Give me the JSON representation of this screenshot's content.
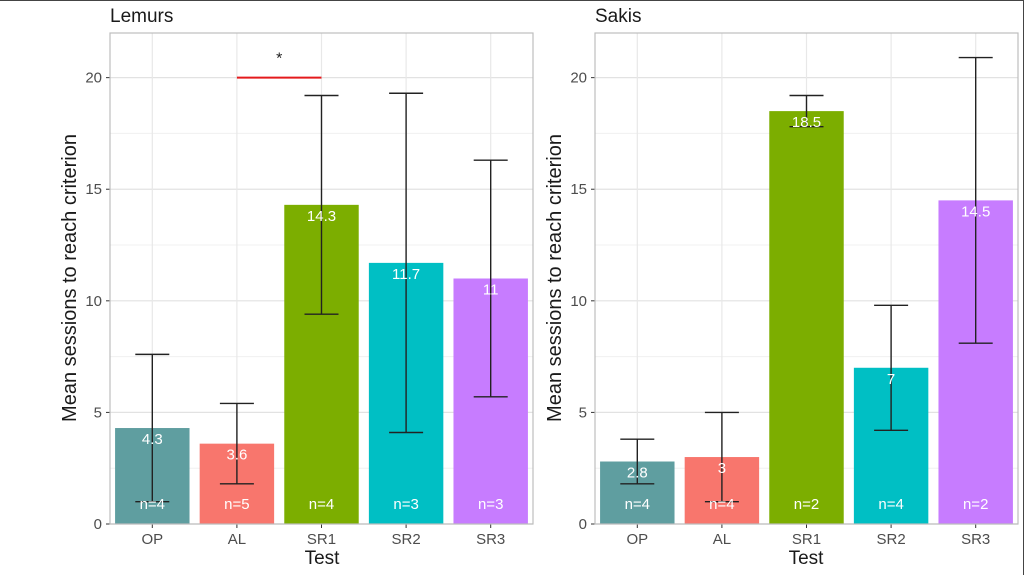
{
  "chart_data": [
    {
      "type": "bar",
      "title": "Lemurs",
      "xlabel": "Test",
      "ylabel": "Mean sessions to reach criterion",
      "ylim": [
        0,
        22
      ],
      "yticks": [
        0,
        5,
        10,
        15,
        20
      ],
      "categories": [
        "OP",
        "AL",
        "SR1",
        "SR2",
        "SR3"
      ],
      "values": [
        4.3,
        3.6,
        14.3,
        11.7,
        11
      ],
      "value_labels": [
        "4.3",
        "3.6",
        "14.3",
        "11.7",
        "11"
      ],
      "error_low": [
        1.0,
        1.8,
        9.4,
        4.1,
        5.7
      ],
      "error_high": [
        7.6,
        5.4,
        19.2,
        19.3,
        16.3
      ],
      "n_labels": [
        "n=4",
        "n=5",
        "n=4",
        "n=3",
        "n=3"
      ],
      "colors": [
        "#5f9ea0",
        "#f8766d",
        "#7cae00",
        "#00bfc4",
        "#c77cff"
      ],
      "grid": true,
      "significance": {
        "from": "AL",
        "to": "SR1",
        "y": 20,
        "label": "*",
        "color": "#e41a1c"
      }
    },
    {
      "type": "bar",
      "title": "Sakis",
      "xlabel": "Test",
      "ylabel": "Mean sessions to reach criterion",
      "ylim": [
        0,
        22
      ],
      "yticks": [
        0,
        5,
        10,
        15,
        20
      ],
      "categories": [
        "OP",
        "AL",
        "SR1",
        "SR2",
        "SR3"
      ],
      "values": [
        2.8,
        3,
        18.5,
        7,
        14.5
      ],
      "value_labels": [
        "2.8",
        "3",
        "18.5",
        "7",
        "14.5"
      ],
      "error_low": [
        1.8,
        1.0,
        17.8,
        4.2,
        8.1
      ],
      "error_high": [
        3.8,
        5.0,
        19.2,
        9.8,
        20.9
      ],
      "n_labels": [
        "n=4",
        "n=4",
        "n=2",
        "n=4",
        "n=2"
      ],
      "colors": [
        "#5f9ea0",
        "#f8766d",
        "#7cae00",
        "#00bfc4",
        "#c77cff"
      ],
      "grid": true
    }
  ]
}
